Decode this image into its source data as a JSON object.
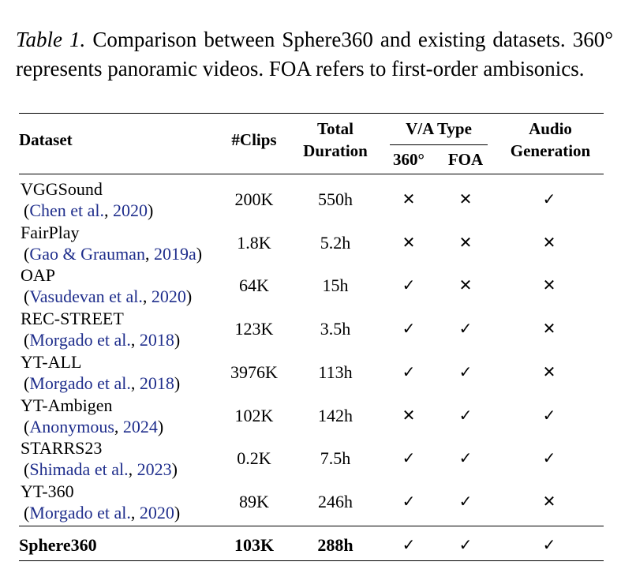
{
  "caption": {
    "label": "Table 1.",
    "text": " Comparison between Sphere360 and existing datasets. 360° represents panoramic videos. FOA refers to first-order ambisonics."
  },
  "headers": {
    "dataset": "Dataset",
    "clips": "#Clips",
    "total_duration_line1": "Total",
    "total_duration_line2": "Duration",
    "va_type": "V/A Type",
    "va_360": "360°",
    "va_foa": "FOA",
    "audio_line1": "Audio",
    "audio_line2": "Generation"
  },
  "symbols": {
    "yes": "✓",
    "no": "✕"
  },
  "rows": [
    {
      "name": "VGGSound",
      "cite": "Chen et al.",
      "year": "2020",
      "clips": "200K",
      "duration": "550h",
      "v360": "✕",
      "foa": "✕",
      "audio": "✓"
    },
    {
      "name": "FairPlay",
      "cite": "Gao & Grauman",
      "year": "2019a",
      "clips": "1.8K",
      "duration": "5.2h",
      "v360": "✕",
      "foa": "✕",
      "audio": "✕"
    },
    {
      "name": "OAP",
      "cite": "Vasudevan et al.",
      "year": "2020",
      "clips": "64K",
      "duration": "15h",
      "v360": "✓",
      "foa": "✕",
      "audio": "✕"
    },
    {
      "name": "REC-STREET",
      "cite": "Morgado et al.",
      "year": "2018",
      "clips": "123K",
      "duration": "3.5h",
      "v360": "✓",
      "foa": "✓",
      "audio": "✕"
    },
    {
      "name": "YT-ALL",
      "cite": "Morgado et al.",
      "year": "2018",
      "clips": "3976K",
      "duration": "113h",
      "v360": "✓",
      "foa": "✓",
      "audio": "✕"
    },
    {
      "name": "YT-Ambigen",
      "cite": "Anonymous",
      "year": "2024",
      "clips": "102K",
      "duration": "142h",
      "v360": "✕",
      "foa": "✓",
      "audio": "✓"
    },
    {
      "name": "STARRS23",
      "cite": "Shimada et al.",
      "year": "2023",
      "clips": "0.2K",
      "duration": "7.5h",
      "v360": "✓",
      "foa": "✓",
      "audio": "✓"
    },
    {
      "name": "YT-360",
      "cite": "Morgado et al.",
      "year": "2020",
      "clips": "89K",
      "duration": "246h",
      "v360": "✓",
      "foa": "✓",
      "audio": "✕"
    }
  ],
  "final_row": {
    "name": "Sphere360",
    "clips": "103K",
    "duration": "288h",
    "v360": "✓",
    "foa": "✓",
    "audio": "✓"
  }
}
